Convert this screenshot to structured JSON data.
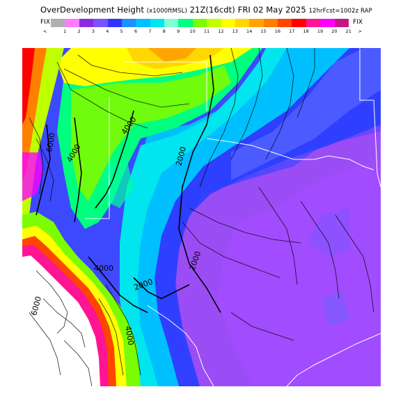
{
  "header": {
    "title_main": "OverDevelopment Height",
    "title_units": "(x1000ftMSL)",
    "title_time": "21Z(16cdt) FRI 02 May 2025",
    "title_run": "12hrFcst=1002z RAP"
  },
  "colorbar": {
    "left_label": "FIX",
    "right_label": "FIX",
    "left_arrow": "<",
    "right_arrow": ">",
    "ticks": [
      "1",
      "2",
      "3",
      "4",
      "5",
      "6",
      "7",
      "8",
      "9",
      "10",
      "11",
      "12",
      "13",
      "14",
      "15",
      "16",
      "17",
      "18",
      "19",
      "20",
      "21"
    ],
    "colors": [
      "#b0b0b0",
      "#ff7cff",
      "#8a2be2",
      "#7b50ff",
      "#3333ff",
      "#1e90ff",
      "#00bfff",
      "#00e5ee",
      "#7fffd4",
      "#00ff7f",
      "#7cfc00",
      "#bfff00",
      "#ffff00",
      "#ffd700",
      "#ffa500",
      "#ff7f00",
      "#ff4500",
      "#ff0000",
      "#ff1493",
      "#ff00ff",
      "#c71585"
    ]
  },
  "map": {
    "contour_labels": [
      "6000",
      "4000",
      "4000",
      "2000",
      "2000",
      "4000",
      "2000",
      "6000",
      "4000"
    ]
  }
}
